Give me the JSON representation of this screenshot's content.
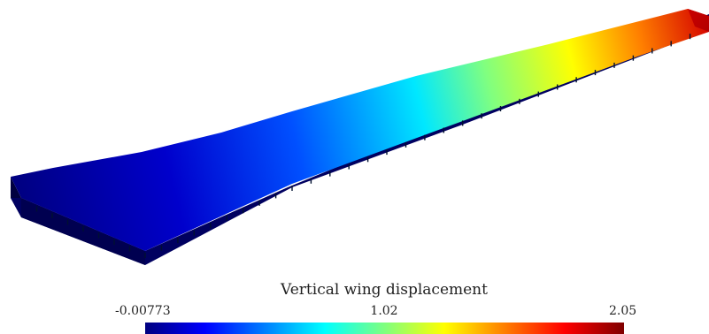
{
  "colorbar": {
    "title": "Vertical wing displacement",
    "min_label": "-0.00773",
    "mid_label": "1.02",
    "max_label": "2.05",
    "min_value": -0.00773,
    "max_value": 2.05,
    "colormap": "jet",
    "colors": [
      "#00007f",
      "#0000ff",
      "#007fff",
      "#00ffff",
      "#7fff7f",
      "#ffff00",
      "#ff7f00",
      "#ff0000",
      "#7f0000"
    ]
  },
  "model": {
    "field": "vertical displacement",
    "root_color": "#00007f",
    "tip_color": "#d40000",
    "side_color": "#000066"
  }
}
